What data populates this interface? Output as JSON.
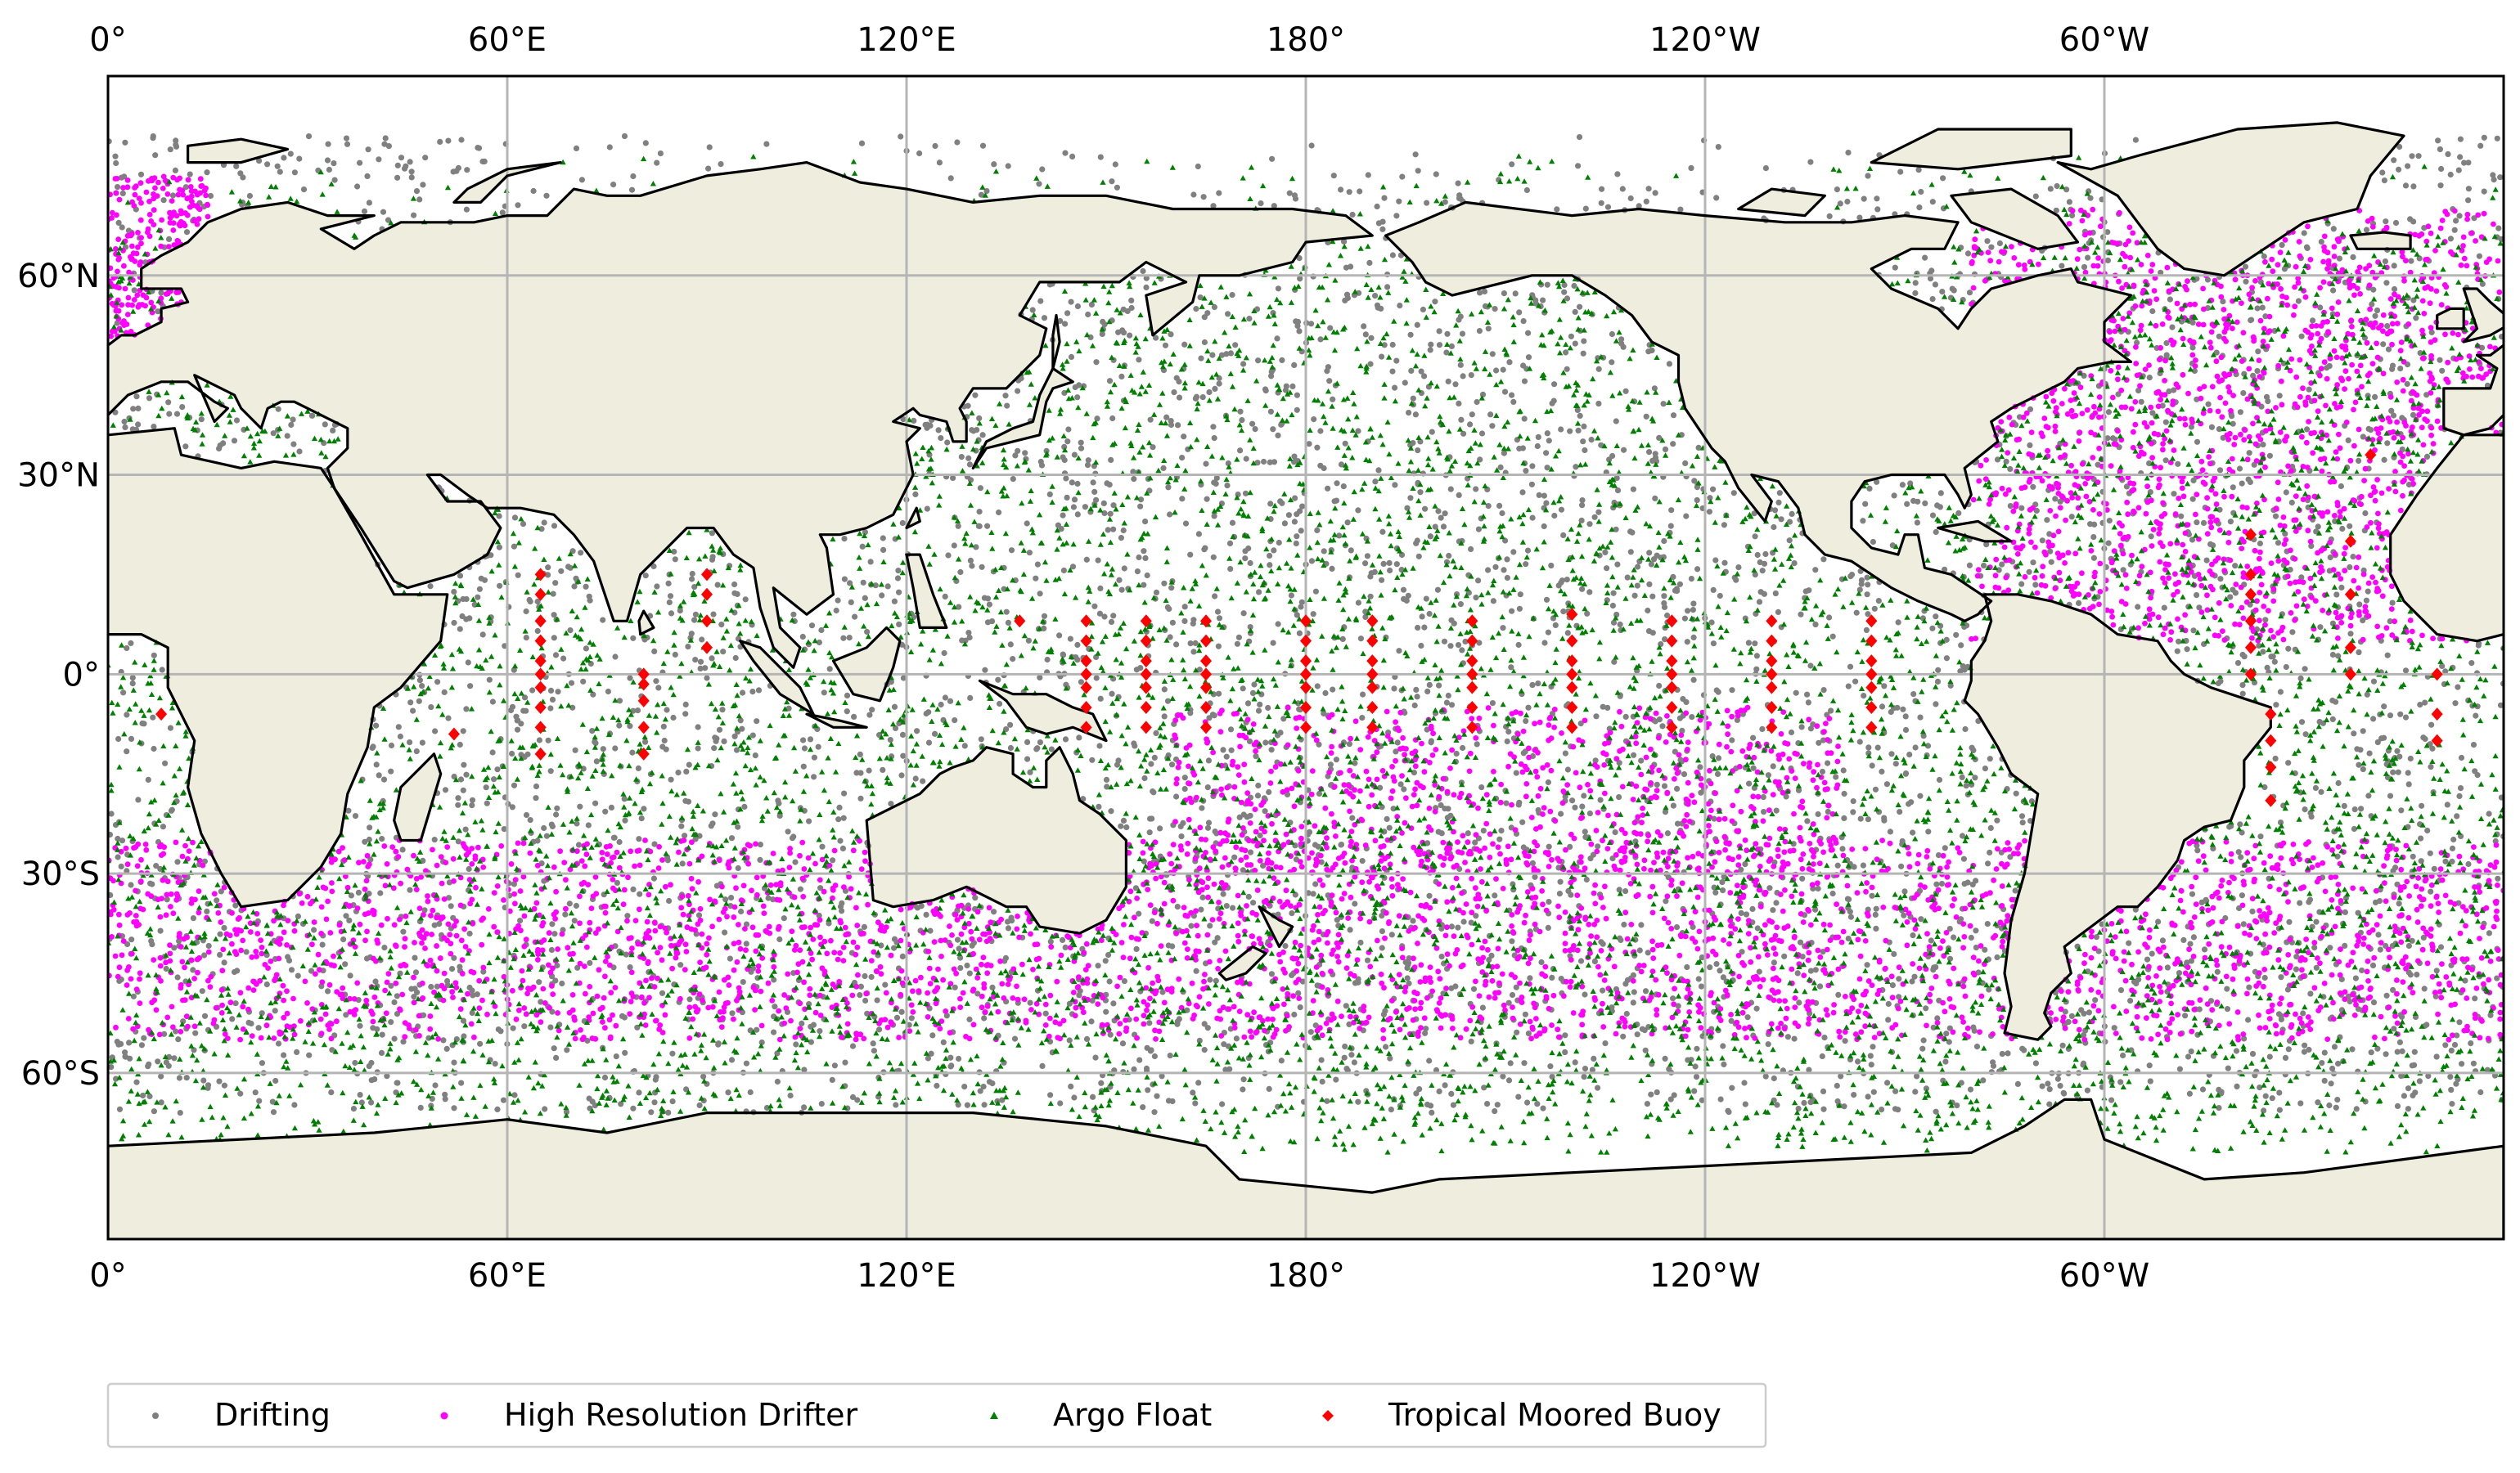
{
  "map": {
    "projection": "PlateCarree",
    "central_longitude": 180,
    "extent": {
      "lon_min": 0,
      "lon_max": 360,
      "lat_min": -85,
      "lat_max": 90
    },
    "gridlines": true,
    "colors": {
      "land": "#efedde",
      "ocean": "#ffffff",
      "coastline": "#000000",
      "grid": "#b5b5b5"
    },
    "lon_ticks": [
      {
        "lon": 0,
        "label": "0°"
      },
      {
        "lon": 60,
        "label": "60°E"
      },
      {
        "lon": 120,
        "label": "120°E"
      },
      {
        "lon": 180,
        "label": "180°"
      },
      {
        "lon": 240,
        "label": "120°W"
      },
      {
        "lon": 300,
        "label": "60°W"
      }
    ],
    "lat_ticks": [
      {
        "lat": 60,
        "label": "60°N"
      },
      {
        "lat": 30,
        "label": "30°N"
      },
      {
        "lat": 0,
        "label": "0°"
      },
      {
        "lat": -30,
        "label": "30°S"
      },
      {
        "lat": -60,
        "label": "60°S"
      }
    ]
  },
  "legend": {
    "placement": "bottom",
    "entries": [
      {
        "key": "drifting",
        "label": "Drifting",
        "color": "#808080",
        "marker": "dot"
      },
      {
        "key": "hrd",
        "label": "High Resolution Drifter",
        "color": "#ff00ff",
        "marker": "dot"
      },
      {
        "key": "argo",
        "label": "Argo Float",
        "color": "#008000",
        "marker": "triangle"
      },
      {
        "key": "tmb",
        "label": "Tropical Moored Buoy",
        "color": "#ff0000",
        "marker": "diamond"
      }
    ]
  },
  "moored_buoy_arrays": [
    {
      "lon": 65,
      "lats": [
        15,
        12,
        8,
        5,
        2,
        0,
        -2,
        -5,
        -8,
        -12
      ]
    },
    {
      "lon": 80.5,
      "lats": [
        0,
        -1.5,
        -4,
        -8,
        -12
      ]
    },
    {
      "lon": 90,
      "lats": [
        15,
        12,
        8,
        4
      ]
    },
    {
      "lon": 137,
      "lats": [
        8
      ]
    },
    {
      "lon": 147,
      "lats": [
        8,
        5,
        2,
        0,
        -2,
        -5,
        -8
      ]
    },
    {
      "lon": 156,
      "lats": [
        8,
        5,
        2,
        0,
        -2,
        -5,
        -8
      ]
    },
    {
      "lon": 165,
      "lats": [
        8,
        5,
        2,
        0,
        -2,
        -5,
        -8
      ]
    },
    {
      "lon": 180,
      "lats": [
        8,
        5,
        2,
        0,
        -2,
        -5,
        -8
      ]
    },
    {
      "lon": 190,
      "lats": [
        8,
        5,
        2,
        0,
        -2,
        -5,
        -8
      ]
    },
    {
      "lon": 205,
      "lats": [
        8,
        5,
        2,
        0,
        -2,
        -5,
        -8
      ]
    },
    {
      "lon": 220,
      "lats": [
        9,
        5,
        2,
        0,
        -2,
        -5,
        -8
      ]
    },
    {
      "lon": 235,
      "lats": [
        8,
        5,
        2,
        0,
        -2,
        -5,
        -8
      ]
    },
    {
      "lon": 250,
      "lats": [
        8,
        5,
        2,
        0,
        -2,
        -5,
        -8
      ]
    },
    {
      "lon": 265,
      "lats": [
        8,
        5,
        2,
        0,
        -2,
        -5,
        -8
      ]
    },
    {
      "lon": 322,
      "lats": [
        21,
        15,
        12,
        8,
        4,
        0
      ]
    },
    {
      "lon": 325,
      "lats": [
        -6,
        -10,
        -14,
        -19
      ]
    },
    {
      "lon": 337,
      "lats": [
        20,
        12,
        4,
        0
      ]
    },
    {
      "lon": 350,
      "lats": [
        0,
        -6,
        -10
      ]
    },
    {
      "lon": 52,
      "lats": [
        -9
      ]
    },
    {
      "lon": 8,
      "lats": [
        -6
      ]
    },
    {
      "lon": 340,
      "lats": [
        33
      ]
    }
  ]
}
